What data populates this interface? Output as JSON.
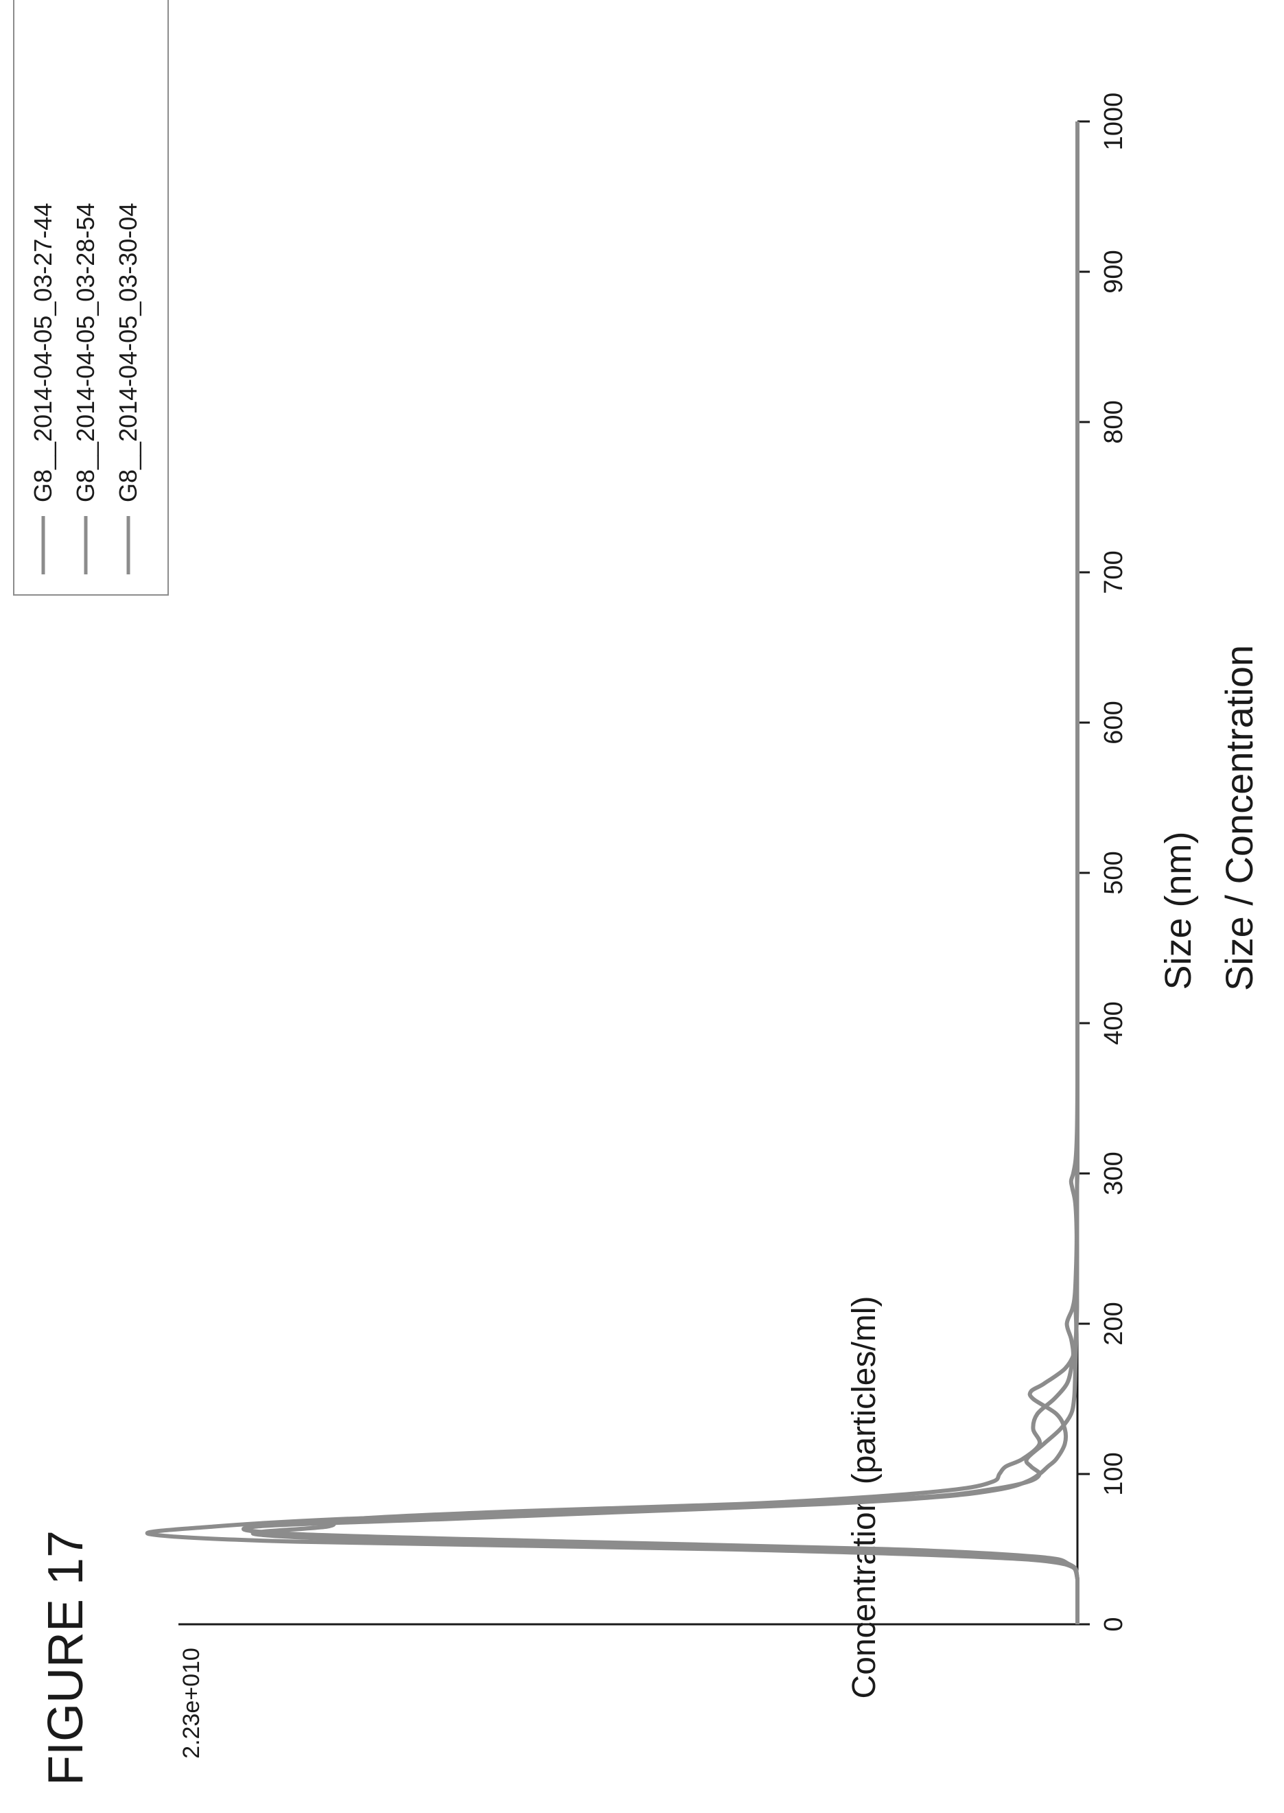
{
  "figure_label": "FIGURE 17",
  "chart_data": {
    "type": "line",
    "title": "Size / Concentration",
    "xlabel": "Size (nm)",
    "ylabel": "Concentration (particles/ml)",
    "xlim": [
      0,
      1000
    ],
    "ylim": [
      0,
      22300000000.0
    ],
    "x_ticks": [
      0,
      100,
      200,
      300,
      400,
      500,
      600,
      700,
      800,
      900,
      1000
    ],
    "x_tick_labels": [
      "0",
      "100",
      "200",
      "300",
      "400",
      "500",
      "600",
      "700",
      "800",
      "900",
      "1000"
    ],
    "y_max_label": "2.23e+010",
    "grid": false,
    "legend_position": "top-right",
    "series": [
      {
        "name": "G8__2014-04-05_03-27-44",
        "color": "#8c8c8c",
        "x": [
          0,
          30,
          40,
          45,
          50,
          55,
          60,
          65,
          70,
          75,
          80,
          85,
          90,
          95,
          100,
          105,
          110,
          120,
          130,
          140,
          150,
          160,
          170,
          180,
          190,
          200,
          210,
          220,
          240,
          260,
          280,
          290,
          295,
          300,
          310,
          330,
          360,
          400,
          500,
          600,
          700,
          800,
          900,
          1000
        ],
        "y": [
          0,
          0,
          200000000.0,
          1500000000.0,
          6500000000.0,
          15500000000.0,
          19500000000.0,
          17800000000.0,
          17200000000.0,
          13500000000.0,
          8000000000.0,
          4800000000.0,
          2800000000.0,
          2000000000.0,
          1850000000.0,
          1700000000.0,
          1300000000.0,
          900000000.0,
          1050000000.0,
          950000000.0,
          550000000.0,
          250000000.0,
          150000000.0,
          100000000.0,
          150000000.0,
          250000000.0,
          120000000.0,
          60000000.0,
          30000000.0,
          20000000.0,
          50000000.0,
          120000000.0,
          150000000.0,
          100000000.0,
          40000000.0,
          10000000.0,
          0,
          0,
          0,
          0,
          0,
          0,
          0,
          0
        ]
      },
      {
        "name": "G8__2014-04-05_03-28-54",
        "color": "#8c8c8c",
        "x": [
          0,
          30,
          40,
          45,
          50,
          55,
          60,
          65,
          70,
          75,
          80,
          85,
          90,
          95,
          100,
          105,
          110,
          120,
          130,
          140,
          150,
          160,
          170,
          180,
          190,
          200,
          210,
          220,
          240,
          260,
          280,
          290,
          300,
          310,
          330,
          360,
          400,
          500,
          600,
          700,
          800,
          900,
          1000
        ],
        "y": [
          0,
          0,
          300000000.0,
          2500000000.0,
          8500000000.0,
          18500000000.0,
          22000000000.0,
          20500000000.0,
          17500000000.0,
          12500000000.0,
          7000000000.0,
          3500000000.0,
          2000000000.0,
          1150000000.0,
          900000000.0,
          1100000000.0,
          1200000000.0,
          800000000.0,
          400000000.0,
          150000000.0,
          80000000.0,
          60000000.0,
          50000000.0,
          40000000.0,
          30000000.0,
          30000000.0,
          40000000.0,
          20000000.0,
          10000000.0,
          10000000.0,
          10000000.0,
          10000000.0,
          10000000.0,
          0,
          0,
          0,
          0,
          0,
          0,
          0,
          0,
          0,
          0
        ]
      },
      {
        "name": "G8__2014-04-05_03-30-04",
        "color": "#8c8c8c",
        "x": [
          0,
          30,
          40,
          45,
          50,
          55,
          60,
          65,
          70,
          75,
          80,
          85,
          90,
          95,
          100,
          105,
          110,
          120,
          130,
          140,
          150,
          155,
          160,
          170,
          180,
          190,
          200,
          210,
          220,
          240,
          260,
          280,
          290,
          300,
          310,
          330,
          360,
          400,
          500,
          600,
          700,
          800,
          900,
          1000
        ],
        "y": [
          0,
          0,
          200000000.0,
          1000000000.0,
          4500000000.0,
          12000000000.0,
          18500000000.0,
          19500000000.0,
          15000000000.0,
          10500000000.0,
          6000000000.0,
          3200000000.0,
          1800000000.0,
          1200000000.0,
          900000000.0,
          700000000.0,
          500000000.0,
          300000000.0,
          300000000.0,
          500000000.0,
          1050000000.0,
          1100000000.0,
          800000000.0,
          300000000.0,
          80000000.0,
          40000000.0,
          20000000.0,
          10000000.0,
          10000000.0,
          10000000.0,
          10000000.0,
          10000000.0,
          10000000.0,
          0,
          0,
          0,
          0,
          0,
          0,
          0,
          0,
          0,
          0,
          0
        ]
      }
    ]
  }
}
